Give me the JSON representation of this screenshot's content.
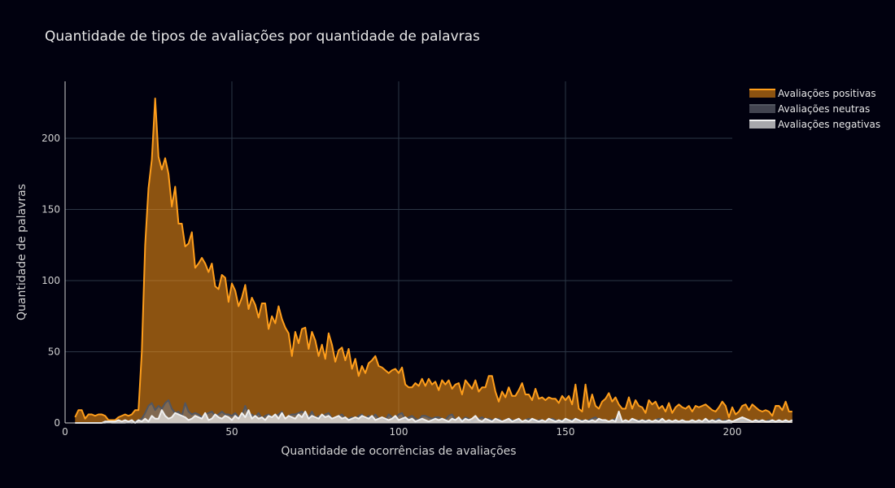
{
  "chart_data": {
    "type": "area",
    "title": "Quantidade de tipos de avaliações por quantidade de palavras",
    "xlabel": "Quantidade de ocorrências de avaliações",
    "ylabel": "Quantidade de palavras",
    "xlim": [
      0,
      200
    ],
    "ylim": [
      0,
      240
    ],
    "x_ticks": [
      0,
      50,
      100,
      150,
      200
    ],
    "y_ticks": [
      0,
      50,
      100,
      150,
      200
    ],
    "grid": true,
    "legend_position": "top-right",
    "x_start": 3,
    "series": [
      {
        "name": "Avaliações positivas",
        "color": "#ff9e1b",
        "fill": "rgba(255,152,20,0.55)",
        "values": [
          4,
          9,
          9,
          3,
          6,
          6,
          5,
          6,
          6,
          5,
          2,
          2,
          2,
          4,
          5,
          6,
          5,
          6,
          9,
          9,
          50,
          125,
          165,
          185,
          228,
          187,
          178,
          186,
          175,
          152,
          166,
          140,
          140,
          124,
          126,
          134,
          109,
          112,
          116,
          112,
          106,
          112,
          96,
          94,
          104,
          102,
          85,
          98,
          93,
          82,
          88,
          97,
          80,
          88,
          83,
          74,
          84,
          84,
          66,
          75,
          70,
          82,
          73,
          67,
          63,
          47,
          64,
          56,
          66,
          67,
          52,
          64,
          58,
          47,
          55,
          45,
          63,
          55,
          43,
          51,
          53,
          44,
          52,
          38,
          45,
          33,
          40,
          35,
          42,
          44,
          47,
          40,
          39,
          37,
          35,
          37,
          38,
          35,
          39,
          27,
          25,
          25,
          28,
          26,
          31,
          26,
          31,
          27,
          29,
          23,
          30,
          27,
          30,
          24,
          27,
          28,
          20,
          30,
          27,
          24,
          30,
          22,
          25,
          25,
          33,
          33,
          22,
          15,
          22,
          18,
          25,
          19,
          19,
          23,
          28,
          20,
          20,
          16,
          24,
          17,
          18,
          16,
          18,
          17,
          17,
          14,
          19,
          16,
          19,
          13,
          27,
          10,
          8,
          27,
          11,
          20,
          12,
          10,
          15,
          17,
          21,
          15,
          18,
          13,
          10,
          10,
          18,
          10,
          16,
          12,
          11,
          7,
          16,
          13,
          15,
          10,
          12,
          8,
          14,
          7,
          11,
          13,
          11,
          10,
          12,
          8,
          12,
          11,
          12,
          13,
          11,
          9,
          8,
          11,
          15,
          12,
          4,
          11,
          6,
          8,
          12,
          13,
          9,
          13,
          11,
          9,
          8,
          9,
          8,
          5,
          12,
          12,
          9,
          15,
          8,
          8
        ]
      },
      {
        "name": "Avaliações neutras",
        "color": "#525660",
        "fill": "rgba(120,124,134,0.55)",
        "values": [
          0,
          0,
          0,
          0,
          0,
          0,
          0,
          0,
          0,
          0,
          1,
          0,
          0,
          0,
          0,
          0,
          1,
          0,
          1,
          2,
          3,
          7,
          12,
          14,
          9,
          12,
          10,
          14,
          16,
          10,
          7,
          8,
          5,
          14,
          8,
          6,
          7,
          6,
          4,
          6,
          7,
          8,
          5,
          6,
          8,
          6,
          6,
          5,
          7,
          4,
          5,
          12,
          5,
          6,
          4,
          7,
          3,
          5,
          6,
          4,
          5,
          6,
          8,
          3,
          5,
          6,
          6,
          7,
          8,
          6,
          4,
          8,
          3,
          5,
          4,
          6,
          7,
          3,
          4,
          5,
          6,
          3,
          3,
          4,
          2,
          5,
          6,
          3,
          5,
          3,
          6,
          3,
          4,
          2,
          6,
          4,
          3,
          6,
          7,
          2,
          4,
          5,
          3,
          2,
          5,
          5,
          4,
          3,
          4,
          4,
          3,
          2,
          5,
          6,
          2,
          3,
          2,
          4,
          3,
          1,
          2,
          3,
          4,
          2,
          3,
          2,
          2,
          3,
          1,
          2,
          3,
          2,
          1,
          2,
          1,
          2,
          3,
          2,
          1,
          2,
          2,
          1,
          2,
          3,
          2,
          1,
          2,
          1,
          2,
          2,
          3,
          1,
          2,
          1,
          2,
          3,
          4,
          2,
          1,
          2,
          1,
          2,
          3,
          2,
          1,
          2,
          1,
          2,
          1,
          2,
          1,
          2,
          1,
          1,
          2,
          3,
          2,
          1,
          2,
          1,
          2,
          1,
          2,
          1,
          1,
          2,
          1,
          2,
          1,
          1,
          2,
          1,
          2,
          3,
          1,
          2,
          1,
          1,
          2,
          1,
          2,
          1,
          2,
          1,
          1,
          2,
          1,
          1,
          2,
          1,
          1,
          2,
          1,
          1,
          1,
          2
        ]
      },
      {
        "name": "Avaliações negativas",
        "color": "#f0f0f0",
        "fill": "rgba(240,240,240,0.7)",
        "values": [
          0,
          0,
          0,
          0,
          0,
          0,
          0,
          0,
          0,
          1,
          1,
          1,
          1,
          2,
          1,
          2,
          1,
          2,
          0,
          2,
          1,
          3,
          1,
          5,
          3,
          3,
          9,
          5,
          3,
          4,
          7,
          6,
          5,
          4,
          2,
          3,
          5,
          4,
          3,
          7,
          2,
          3,
          6,
          4,
          3,
          5,
          4,
          2,
          5,
          3,
          7,
          4,
          9,
          3,
          5,
          3,
          4,
          2,
          5,
          4,
          6,
          3,
          7,
          3,
          5,
          4,
          3,
          6,
          4,
          8,
          3,
          5,
          4,
          3,
          6,
          4,
          5,
          3,
          4,
          5,
          3,
          4,
          2,
          3,
          4,
          3,
          5,
          4,
          3,
          5,
          2,
          3,
          4,
          3,
          2,
          3,
          5,
          2,
          3,
          4,
          2,
          3,
          1,
          2,
          3,
          2,
          1,
          2,
          3,
          2,
          3,
          2,
          1,
          3,
          2,
          4,
          1,
          3,
          2,
          3,
          5,
          2,
          1,
          3,
          2,
          1,
          3,
          2,
          1,
          2,
          3,
          1,
          2,
          3,
          1,
          2,
          1,
          3,
          2,
          1,
          2,
          1,
          3,
          2,
          1,
          2,
          1,
          3,
          2,
          1,
          3,
          2,
          1,
          2,
          1,
          2,
          1,
          3,
          2,
          2,
          1,
          2,
          1,
          8,
          1,
          2,
          1,
          3,
          2,
          1,
          2,
          1,
          2,
          1,
          2,
          1,
          3,
          1,
          2,
          1,
          2,
          1,
          2,
          1,
          1,
          2,
          1,
          2,
          1,
          3,
          1,
          2,
          1,
          2,
          1,
          1,
          2,
          1,
          2,
          3,
          4,
          3,
          2,
          1,
          2,
          1,
          2,
          1,
          1,
          2,
          1,
          2,
          1,
          2,
          1,
          2
        ]
      }
    ]
  }
}
